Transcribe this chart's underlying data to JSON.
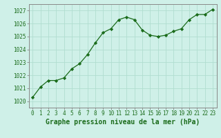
{
  "x": [
    0,
    1,
    2,
    3,
    4,
    5,
    6,
    7,
    8,
    9,
    10,
    11,
    12,
    13,
    14,
    15,
    16,
    17,
    18,
    19,
    20,
    21,
    22,
    23
  ],
  "y": [
    1020.3,
    1021.1,
    1021.6,
    1021.6,
    1021.8,
    1022.5,
    1022.9,
    1023.6,
    1024.5,
    1025.3,
    1025.6,
    1026.3,
    1026.5,
    1026.3,
    1025.5,
    1025.1,
    1025.0,
    1025.1,
    1025.4,
    1025.6,
    1026.3,
    1026.7,
    1026.7,
    1027.1
  ],
  "line_color": "#1a6b1a",
  "marker": "D",
  "marker_size": 2.2,
  "bg_color": "#cff0e8",
  "grid_color": "#b0ddd0",
  "xlabel": "Graphe pression niveau de la mer (hPa)",
  "xlabel_fontsize": 7,
  "ylim": [
    1019.5,
    1027.5
  ],
  "yticks": [
    1020,
    1021,
    1022,
    1023,
    1024,
    1025,
    1026,
    1027
  ],
  "xticks": [
    0,
    1,
    2,
    3,
    4,
    5,
    6,
    7,
    8,
    9,
    10,
    11,
    12,
    13,
    14,
    15,
    16,
    17,
    18,
    19,
    20,
    21,
    22,
    23
  ],
  "tick_fontsize": 5.5,
  "spine_color": "#888888"
}
